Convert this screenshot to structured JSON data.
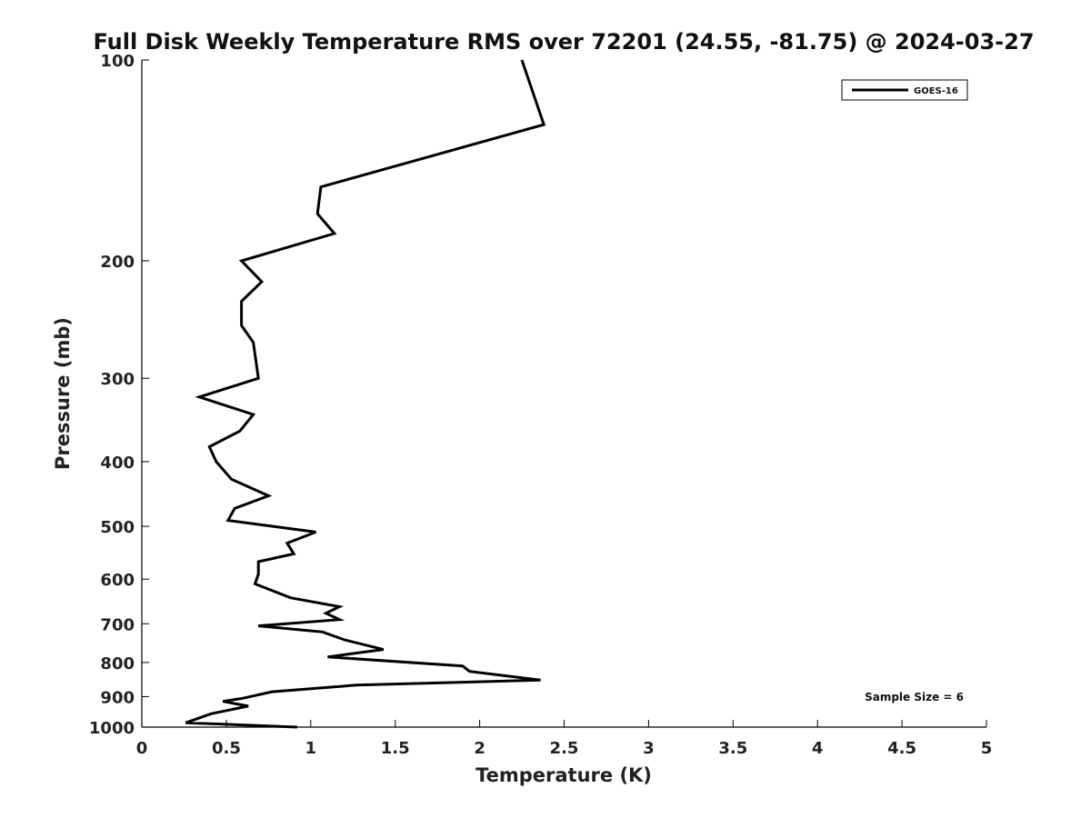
{
  "chart_data": {
    "type": "line",
    "title": "Full Disk Weekly Temperature RMS over 72201 (24.55, -81.75) @ 2024-03-27",
    "xlabel": "Temperature (K)",
    "ylabel": "Pressure (mb)",
    "xlim": [
      0,
      5
    ],
    "ylim": [
      1000,
      100
    ],
    "y_scale": "log",
    "y_reversed": true,
    "x_ticks": [
      0,
      0.5,
      1,
      1.5,
      2,
      2.5,
      3,
      3.5,
      4,
      4.5,
      5
    ],
    "x_tick_labels": [
      "0",
      "0.5",
      "1",
      "1.5",
      "2",
      "2.5",
      "3",
      "3.5",
      "4",
      "4.5",
      "5"
    ],
    "y_ticks": [
      100,
      200,
      300,
      400,
      500,
      600,
      700,
      800,
      900,
      1000
    ],
    "y_tick_labels": [
      "100",
      "200",
      "300",
      "400",
      "500",
      "600",
      "700",
      "800",
      "900",
      "1000"
    ],
    "grid": false,
    "legend_position": "top-right",
    "series": [
      {
        "name": "GOES-16",
        "color": "#000000",
        "points": [
          [
            2.25,
            100
          ],
          [
            2.38,
            125
          ],
          [
            1.06,
            155
          ],
          [
            1.04,
            170
          ],
          [
            1.14,
            182
          ],
          [
            0.59,
            200
          ],
          [
            0.71,
            215
          ],
          [
            0.59,
            230
          ],
          [
            0.59,
            250
          ],
          [
            0.66,
            265
          ],
          [
            0.69,
            300
          ],
          [
            0.34,
            320
          ],
          [
            0.66,
            340
          ],
          [
            0.58,
            360
          ],
          [
            0.4,
            380
          ],
          [
            0.44,
            400
          ],
          [
            0.53,
            425
          ],
          [
            0.75,
            450
          ],
          [
            0.55,
            470
          ],
          [
            0.51,
            490
          ],
          [
            1.03,
            510
          ],
          [
            0.86,
            530
          ],
          [
            0.9,
            550
          ],
          [
            0.69,
            565
          ],
          [
            0.69,
            590
          ],
          [
            0.67,
            610
          ],
          [
            0.88,
            640
          ],
          [
            1.17,
            660
          ],
          [
            1.09,
            675
          ],
          [
            1.17,
            690
          ],
          [
            0.69,
            705
          ],
          [
            1.07,
            720
          ],
          [
            1.2,
            740
          ],
          [
            1.43,
            765
          ],
          [
            1.1,
            785
          ],
          [
            1.9,
            810
          ],
          [
            1.94,
            825
          ],
          [
            2.36,
            850
          ],
          [
            1.27,
            865
          ],
          [
            0.77,
            885
          ],
          [
            0.6,
            905
          ],
          [
            0.48,
            915
          ],
          [
            0.63,
            930
          ],
          [
            0.41,
            955
          ],
          [
            0.26,
            985
          ],
          [
            0.92,
            1000
          ]
        ]
      }
    ],
    "annotations": [
      {
        "text": "Sample Size = 6",
        "position": "bottom-right"
      }
    ]
  }
}
